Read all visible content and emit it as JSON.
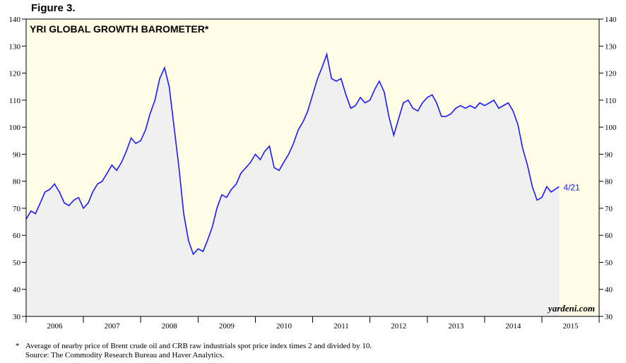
{
  "figure_label": "Figure 3.",
  "footnote": {
    "marker": "*",
    "line1": "Average of nearby price of Brent crude oil and CRB raw industrials spot price index times 2 and divided by 10.",
    "line2": "Source: The Commodity Research Bureau and Haver Analytics."
  },
  "colors": {
    "line": "#1a1aff",
    "area_fill": "#f0f0f0",
    "background": "#fffde6",
    "frame": "#000000"
  },
  "chart_data": {
    "type": "line",
    "title": "YRI GLOBAL GROWTH BAROMETER*",
    "source_label": "yardeni.com",
    "end_label": "4/21",
    "xlabel": "",
    "ylabel": "",
    "grid": false,
    "area_fill_under_line": true,
    "ylim": [
      30,
      140
    ],
    "yticks": [
      30,
      40,
      50,
      60,
      70,
      80,
      90,
      100,
      110,
      120,
      130,
      140
    ],
    "y_axis_both_sides": true,
    "xlim": [
      "2006-01-01",
      "2015-12-31"
    ],
    "x_tick_labels": [
      "2006",
      "2007",
      "2008",
      "2009",
      "2010",
      "2011",
      "2012",
      "2013",
      "2014",
      "2015"
    ],
    "series": [
      {
        "x": [
          "2006-01-01",
          "2006-02-01",
          "2006-03-01",
          "2006-04-01",
          "2006-05-01",
          "2006-06-01",
          "2006-07-01",
          "2006-08-01",
          "2006-09-01",
          "2006-10-01",
          "2006-11-01",
          "2006-12-01",
          "2007-01-01",
          "2007-02-01",
          "2007-03-01",
          "2007-04-01",
          "2007-05-01",
          "2007-06-01",
          "2007-07-01",
          "2007-08-01",
          "2007-09-01",
          "2007-10-01",
          "2007-11-01",
          "2007-12-01",
          "2008-01-01",
          "2008-02-01",
          "2008-03-01",
          "2008-04-01",
          "2008-05-01",
          "2008-06-01",
          "2008-07-01",
          "2008-08-01",
          "2008-09-01",
          "2008-10-01",
          "2008-11-01",
          "2008-12-01",
          "2009-01-01",
          "2009-02-01",
          "2009-03-01",
          "2009-04-01",
          "2009-05-01",
          "2009-06-01",
          "2009-07-01",
          "2009-08-01",
          "2009-09-01",
          "2009-10-01",
          "2009-11-01",
          "2009-12-01",
          "2010-01-01",
          "2010-02-01",
          "2010-03-01",
          "2010-04-01",
          "2010-05-01",
          "2010-06-01",
          "2010-07-01",
          "2010-08-01",
          "2010-09-01",
          "2010-10-01",
          "2010-11-01",
          "2010-12-01",
          "2011-01-01",
          "2011-02-01",
          "2011-03-01",
          "2011-04-01",
          "2011-05-01",
          "2011-06-01",
          "2011-07-01",
          "2011-08-01",
          "2011-09-01",
          "2011-10-01",
          "2011-11-01",
          "2011-12-01",
          "2012-01-01",
          "2012-02-01",
          "2012-03-01",
          "2012-04-01",
          "2012-05-01",
          "2012-06-01",
          "2012-07-01",
          "2012-08-01",
          "2012-09-01",
          "2012-10-01",
          "2012-11-01",
          "2012-12-01",
          "2013-01-01",
          "2013-02-01",
          "2013-03-01",
          "2013-04-01",
          "2013-05-01",
          "2013-06-01",
          "2013-07-01",
          "2013-08-01",
          "2013-09-01",
          "2013-10-01",
          "2013-11-01",
          "2013-12-01",
          "2014-01-01",
          "2014-02-01",
          "2014-03-01",
          "2014-04-01",
          "2014-05-01",
          "2014-06-01",
          "2014-07-01",
          "2014-08-01",
          "2014-09-01",
          "2014-10-01",
          "2014-11-01",
          "2014-12-01",
          "2015-01-01",
          "2015-02-01",
          "2015-03-01",
          "2015-04-21"
        ],
        "values": [
          66,
          69,
          68,
          72,
          76,
          77,
          79,
          76,
          72,
          71,
          73,
          74,
          70,
          72,
          76,
          79,
          80,
          83,
          86,
          84,
          87,
          91,
          96,
          94,
          95,
          99,
          105,
          110,
          118,
          122,
          115,
          100,
          85,
          68,
          58,
          53,
          55,
          54,
          58,
          63,
          70,
          75,
          74,
          77,
          79,
          83,
          85,
          87,
          90,
          88,
          91,
          93,
          85,
          84,
          87,
          90,
          94,
          99,
          102,
          106,
          112,
          118,
          122,
          127,
          118,
          117,
          118,
          112,
          107,
          108,
          111,
          109,
          110,
          114,
          117,
          113,
          104,
          97,
          103,
          109,
          110,
          107,
          106,
          109,
          111,
          112,
          109,
          104,
          104,
          105,
          107,
          108,
          107,
          108,
          107,
          109,
          108,
          109,
          110,
          107,
          108,
          109,
          106,
          101,
          92,
          86,
          78,
          73,
          74,
          78,
          76,
          78
        ]
      }
    ]
  }
}
